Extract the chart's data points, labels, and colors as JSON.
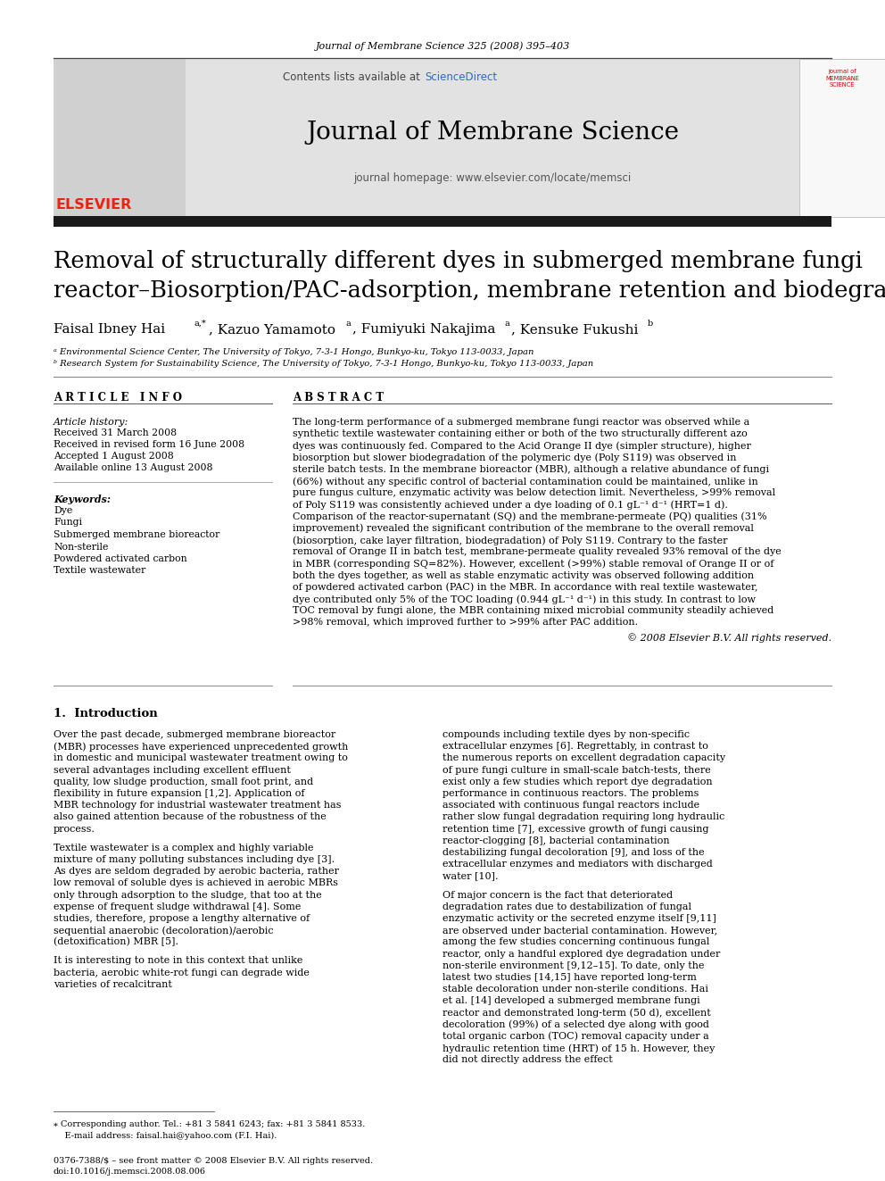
{
  "journal_header": "Journal of Membrane Science 325 (2008) 395–403",
  "contents_pre": "Contents lists available at ",
  "contents_link": "ScienceDirect",
  "journal_name": "Journal of Membrane Science",
  "journal_homepage": "journal homepage: www.elsevier.com/locate/memsci",
  "title_line1": "Removal of structurally different dyes in submerged membrane fungi",
  "title_line2": "reactor–Biosorption/PAC-adsorption, membrane retention and biodegradation",
  "authors": "Faisal Ibney Hai",
  "authors_super": "a,*",
  "authors_rest": ", Kazuo Yamamoto",
  "authors_a2": "a",
  "authors_rest2": ", Fumiyuki Nakajima",
  "authors_a3": "a",
  "authors_rest3": ", Kensuke Fukushi",
  "authors_b": "b",
  "affil_a": "ᵃ Environmental Science Center, The University of Tokyo, 7-3-1 Hongo, Bunkyo-ku, Tokyo 113-0033, Japan",
  "affil_b": "ᵇ Research System for Sustainability Science, The University of Tokyo, 7-3-1 Hongo, Bunkyo-ku, Tokyo 113-0033, Japan",
  "article_info_title": "A R T I C L E   I N F O",
  "abstract_title": "A B S T R A C T",
  "hist_label": "Article history:",
  "hist1": "Received 31 March 2008",
  "hist2": "Received in revised form 16 June 2008",
  "hist3": "Accepted 1 August 2008",
  "hist4": "Available online 13 August 2008",
  "kw_label": "Keywords:",
  "kw1": "Dye",
  "kw2": "Fungi",
  "kw3": "Submerged membrane bioreactor",
  "kw4": "Non-sterile",
  "kw5": "Powdered activated carbon",
  "kw6": "Textile wastewater",
  "abstract_text": "The long-term performance of a submerged membrane fungi reactor was observed while a synthetic textile wastewater containing either or both of the two structurally different azo dyes was continuously fed. Compared to the Acid Orange II dye (simpler structure), higher biosorption but slower biodegradation of the polymeric dye (Poly S119) was observed in sterile batch tests. In the membrane bioreactor (MBR), although a relative abundance of fungi (66%) without any specific control of bacterial contamination could be maintained, unlike in pure fungus culture, enzymatic activity was below detection limit. Nevertheless, >99% removal of Poly S119 was consistently achieved under a dye loading of 0.1 gL⁻¹ d⁻¹ (HRT=1 d). Comparison of the reactor-supernatant (SQ) and the membrane-permeate (PQ) qualities (31% improvement) revealed the significant contribution of the membrane to the overall removal (biosorption, cake layer filtration, biodegradation) of Poly S119. Contrary to the faster removal of Orange II in batch test, membrane-permeate quality revealed 93% removal of the dye in MBR (corresponding SQ=82%). However, excellent (>99%) stable removal of Orange II or of both the dyes together, as well as stable enzymatic activity was observed following addition of powdered activated carbon (PAC) in the MBR. In accordance with real textile wastewater, dye contributed only 5% of the TOC loading (0.944 gL⁻¹ d⁻¹) in this study. In contrast to low TOC removal by fungi alone, the MBR containing mixed microbial community steadily achieved >98% removal, which improved further to >99% after PAC addition.",
  "abstract_copyright": "© 2008 Elsevier B.V. All rights reserved.",
  "sec1_title": "1.  Introduction",
  "intro_p1": "Over the past decade, submerged membrane bioreactor (MBR) processes have experienced unprecedented growth in domestic and municipal wastewater treatment owing to several advantages including excellent effluent quality, low sludge production, small foot print, and flexibility in future expansion [1,2]. Application of MBR technology for industrial wastewater treatment has also gained attention because of the robustness of the process.",
  "intro_p2": "Textile wastewater is a complex and highly variable mixture of many polluting substances including dye [3]. As dyes are seldom degraded by aerobic bacteria, rather low removal of soluble dyes is achieved in aerobic MBRs only through adsorption to the sludge, that too at the expense of frequent sludge withdrawal [4]. Some studies, therefore, propose a lengthy alternative of sequential anaerobic (decoloration)/aerobic (detoxification) MBR [5].",
  "intro_p3": "It is interesting to note in this context that unlike bacteria, aerobic white-rot fungi can degrade wide varieties of recalcitrant",
  "intro2_p1": "compounds including textile dyes by non-specific extracellular enzymes [6]. Regrettably, in contrast to the numerous reports on excellent degradation capacity of pure fungi culture in small-scale batch-tests, there exist only a few studies which report dye degradation performance in continuous reactors. The problems associated with continuous fungal reactors include rather slow fungal degradation requiring long hydraulic retention time [7], excessive growth of fungi causing reactor-clogging [8], bacterial contamination destabilizing fungal decoloration [9], and loss of the extracellular enzymes and mediators with discharged water [10].",
  "intro2_p2": "Of major concern is the fact that deteriorated degradation rates due to destabilization of fungal enzymatic activity or the secreted enzyme itself [9,11] are observed under bacterial contamination. However, among the few studies concerning continuous fungal reactor, only a handful explored dye degradation under non-sterile environment [9,12–15]. To date, only the latest two studies [14,15] have reported long-term stable decoloration under non-sterile conditions. Hai et al. [14] developed a submerged membrane fungi reactor and demonstrated long-term (50 d), excellent decoloration (99%) of a selected dye along with good total organic carbon (TOC) removal capacity under a hydraulic retention time (HRT) of 15 h. However, they did not directly address the effect",
  "footnote1": "⁎ Corresponding author. Tel.: +81 3 5841 6243; fax: +81 3 5841 8533.",
  "footnote2": "    E-mail address: faisal.hai@yahoo.com (F.I. Hai).",
  "footer1": "0376-7388/$ – see front matter © 2008 Elsevier B.V. All rights reserved.",
  "footer2": "doi:10.1016/j.memsci.2008.08.006",
  "bg": "#ffffff",
  "gray_bg": "#e2e2e2",
  "dark_bar": "#1a1a1a",
  "elsevier_red": "#e8230e",
  "sd_blue": "#3366cc",
  "jms_red": "#cc0000"
}
